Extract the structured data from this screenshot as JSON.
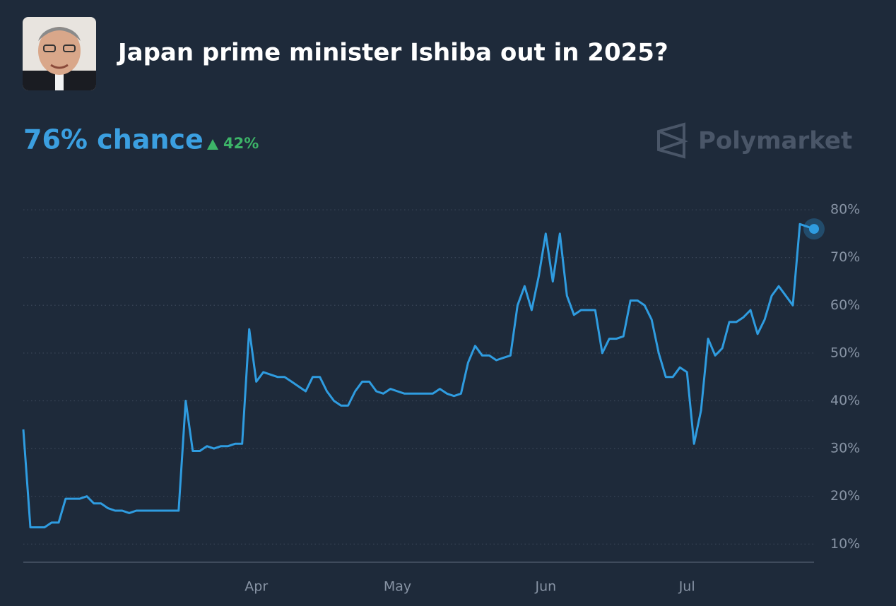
{
  "chart_data": {
    "type": "line",
    "title": "Japan prime minister Ishiba out in 2025?",
    "chance": "76% chance",
    "change": "42%",
    "brand": "Polymarket",
    "color": "#2f9ce0",
    "grid": true,
    "categories": [
      null,
      null,
      null,
      null,
      null,
      null,
      null,
      null,
      null,
      null,
      null,
      null,
      null,
      null,
      null,
      null,
      null,
      null,
      null,
      null,
      null,
      null,
      null,
      null,
      null,
      null,
      null,
      null,
      null,
      null,
      null,
      null,
      null,
      "Apr",
      null,
      null,
      null,
      null,
      null,
      null,
      null,
      null,
      null,
      null,
      null,
      null,
      null,
      null,
      null,
      null,
      null,
      null,
      null,
      "May",
      null,
      null,
      null,
      null,
      null,
      null,
      null,
      null,
      null,
      null,
      null,
      null,
      null,
      null,
      null,
      null,
      null,
      null,
      null,
      null,
      "Jun",
      null,
      null,
      null,
      null,
      null,
      null,
      null,
      null,
      null,
      null,
      null,
      null,
      null,
      null,
      null,
      null,
      null,
      null,
      null,
      "Jul",
      null,
      null,
      null,
      null,
      null,
      null,
      null,
      null,
      null,
      null,
      null,
      null,
      null,
      null,
      null,
      null,
      null,
      null
    ],
    "values": [
      34,
      13.5,
      13.5,
      13.5,
      14.5,
      14.5,
      19.5,
      19.5,
      19.5,
      20,
      18.5,
      18.5,
      17.5,
      17,
      17,
      16.5,
      17,
      17,
      17,
      17,
      17,
      17,
      17,
      40,
      29.5,
      29.5,
      30.5,
      30,
      30.5,
      30.5,
      31,
      31,
      55,
      44,
      46,
      45.5,
      45,
      45,
      44,
      43,
      42,
      45,
      45,
      42,
      40,
      39,
      39,
      42,
      44,
      44,
      42,
      41.5,
      42.5,
      42,
      41.5,
      41.5,
      41.5,
      41.5,
      41.5,
      42.5,
      41.5,
      41,
      41.5,
      48,
      51.5,
      49.5,
      49.5,
      48.5,
      49,
      49.5,
      60,
      64,
      59,
      66,
      75,
      65,
      75,
      62,
      58,
      59,
      59,
      59,
      50,
      53,
      53,
      53.5,
      61,
      61,
      60,
      57,
      50,
      45,
      45,
      47,
      46,
      31,
      38,
      53,
      49.5,
      51,
      56.5,
      56.5,
      57.5,
      59,
      54,
      57,
      62,
      64,
      62,
      60,
      77,
      76.5,
      76
    ],
    "ylim": [
      6.2,
      84
    ],
    "yticks": [
      {
        "value": 10,
        "label": "10%"
      },
      {
        "value": 20,
        "label": "20%"
      },
      {
        "value": 30,
        "label": "30%"
      },
      {
        "value": 40,
        "label": "40%"
      },
      {
        "value": 50,
        "label": "50%"
      },
      {
        "value": 60,
        "label": "60%"
      },
      {
        "value": 70,
        "label": "70%"
      },
      {
        "value": 80,
        "label": "80%"
      }
    ]
  }
}
